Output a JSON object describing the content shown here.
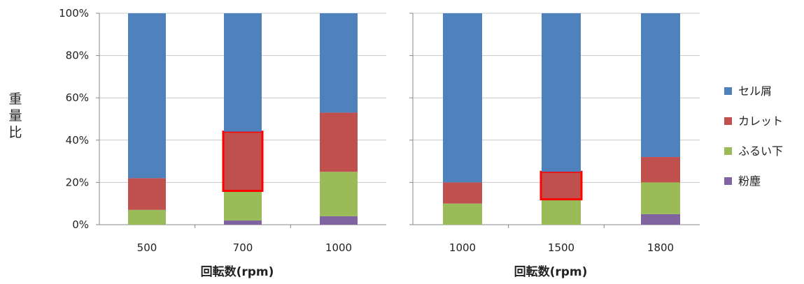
{
  "chart_data": {
    "type": "bar",
    "stacked": true,
    "normalized": true,
    "ylabel": "重量比",
    "yticks": [
      "0%",
      "20%",
      "40%",
      "60%",
      "80%",
      "100%"
    ],
    "ylim": [
      0,
      100
    ],
    "grid": true,
    "legend_position": "right",
    "legend": [
      {
        "name": "セル屑",
        "color": "#4F81BD"
      },
      {
        "name": "カレット",
        "color": "#C0504D"
      },
      {
        "name": "ふるい下",
        "color": "#9BBB59"
      },
      {
        "name": "粉塵",
        "color": "#8064A2"
      }
    ],
    "highlight_color": "#FF0000",
    "panels": [
      {
        "xlabel": "回転数(rpm)",
        "categories": [
          "500",
          "700",
          "1000"
        ],
        "series": [
          {
            "name": "粉塵",
            "values": [
              0,
              2,
              4
            ]
          },
          {
            "name": "ふるい下",
            "values": [
              7,
              14,
              21
            ]
          },
          {
            "name": "カレット",
            "values": [
              15,
              28,
              28
            ]
          },
          {
            "name": "セル屑",
            "values": [
              78,
              56,
              47
            ]
          }
        ],
        "highlight": {
          "category": "700",
          "series": "カレット"
        }
      },
      {
        "xlabel": "回転数(rpm)",
        "categories": [
          "1000",
          "1500",
          "1800"
        ],
        "series": [
          {
            "name": "粉塵",
            "values": [
              0,
              0,
              5
            ]
          },
          {
            "name": "ふるい下",
            "values": [
              10,
              12,
              15
            ]
          },
          {
            "name": "カレット",
            "values": [
              10,
              13,
              12
            ]
          },
          {
            "name": "セル屑",
            "values": [
              80,
              75,
              68
            ]
          }
        ],
        "highlight": {
          "category": "1500",
          "series": "カレット"
        }
      }
    ]
  }
}
